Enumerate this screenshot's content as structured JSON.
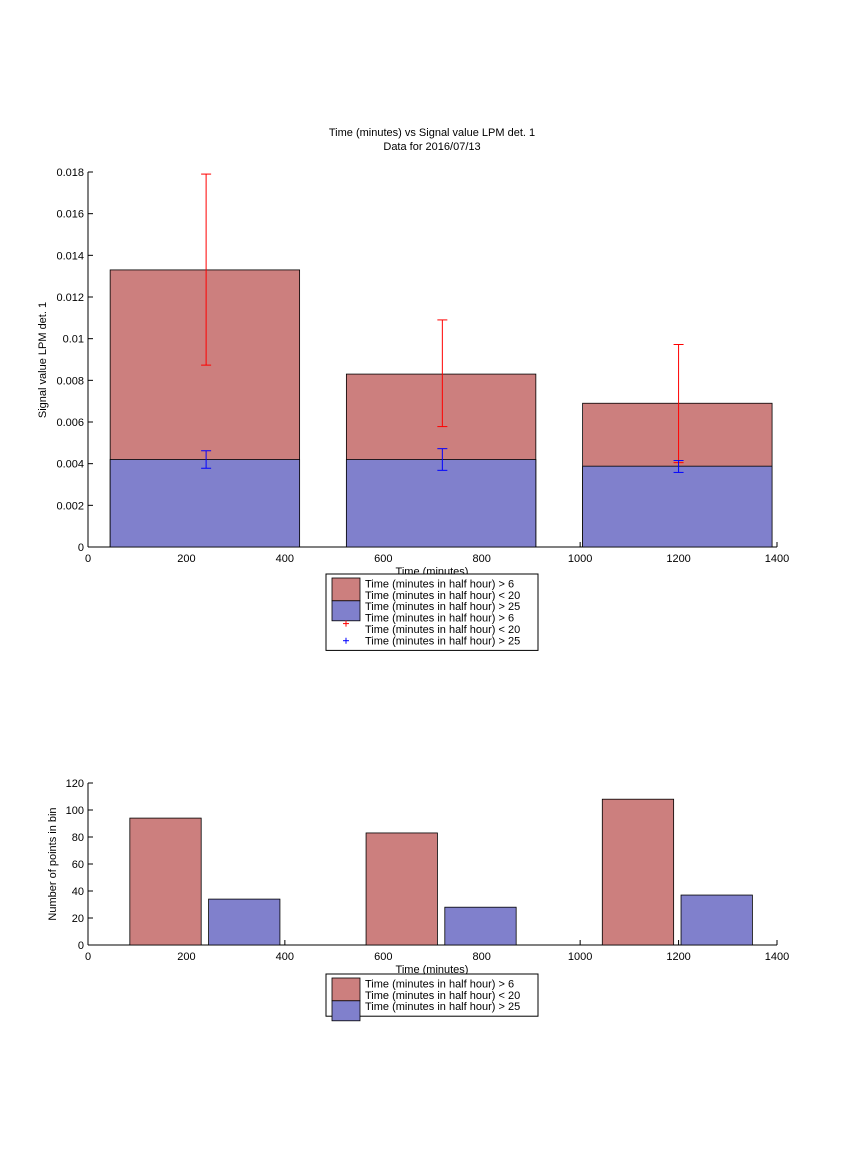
{
  "colors": {
    "red_fill": "#cc7f7e",
    "blue_fill": "#8080cc",
    "red_err": "#ff0000",
    "blue_err": "#0000ff"
  },
  "chart_data": [
    {
      "type": "bar",
      "title": "Time (minutes) vs Signal value LPM det. 1",
      "subtitle": "Data for 2016/07/13",
      "xlabel": "Time (minutes)",
      "ylabel": "Signal value LPM det. 1",
      "xlim": [
        0,
        1400
      ],
      "ylim": [
        0,
        0.018
      ],
      "xticks": [
        0,
        200,
        400,
        600,
        800,
        1000,
        1200,
        1400
      ],
      "yticks": [
        0,
        0.002,
        0.004,
        0.006,
        0.008,
        0.01,
        0.012,
        0.014,
        0.016,
        0.018
      ],
      "ytick_labels": [
        "0",
        "0.002",
        "0.004",
        "0.006",
        "0.008",
        "0.01",
        "0.012",
        "0.014",
        "0.016",
        "0.018"
      ],
      "bars": [
        {
          "x0": 45,
          "x1": 430,
          "center": 240,
          "red": 0.0133,
          "blue": 0.0042
        },
        {
          "x0": 525,
          "x1": 910,
          "center": 720,
          "red": 0.0083,
          "blue": 0.0042
        },
        {
          "x0": 1005,
          "x1": 1390,
          "center": 1200,
          "red": 0.0069,
          "blue": 0.00388
        }
      ],
      "errorbars": [
        {
          "series": "red",
          "x": 240,
          "low": 0.00873,
          "high": 0.0179
        },
        {
          "series": "red",
          "x": 720,
          "low": 0.00578,
          "high": 0.0109
        },
        {
          "series": "red",
          "x": 1200,
          "low": 0.00405,
          "high": 0.00972
        },
        {
          "series": "blue",
          "x": 240,
          "low": 0.00378,
          "high": 0.00462
        },
        {
          "series": "blue",
          "x": 720,
          "low": 0.00368,
          "high": 0.00472
        },
        {
          "series": "blue",
          "x": 1200,
          "low": 0.00358,
          "high": 0.00415
        }
      ],
      "legend": [
        {
          "kind": "red-patch",
          "lines": [
            "Time (minutes in half hour) > 6",
            "Time (minutes in half hour) < 20"
          ]
        },
        {
          "kind": "blue-patch",
          "lines": [
            "Time (minutes in half hour) > 25"
          ]
        },
        {
          "kind": "red-marker",
          "lines": [
            "Time (minutes in half hour) > 6",
            "Time (minutes in half hour) < 20"
          ]
        },
        {
          "kind": "blue-marker",
          "lines": [
            "Time (minutes in half hour) > 25"
          ]
        }
      ],
      "legend_placement": "below axes"
    },
    {
      "type": "bar",
      "xlabel": "Time (minutes)",
      "ylabel": "Number of points in bin",
      "xlim": [
        0,
        1400
      ],
      "ylim": [
        0,
        120
      ],
      "xticks": [
        0,
        200,
        400,
        600,
        800,
        1000,
        1200,
        1400
      ],
      "yticks": [
        0,
        20,
        40,
        60,
        80,
        100,
        120
      ],
      "bars": [
        {
          "series": "red",
          "x0": 85,
          "x1": 230,
          "value": 94
        },
        {
          "series": "blue",
          "x0": 245,
          "x1": 390,
          "value": 34
        },
        {
          "series": "red",
          "x0": 565,
          "x1": 710,
          "value": 83
        },
        {
          "series": "blue",
          "x0": 725,
          "x1": 870,
          "value": 28
        },
        {
          "series": "red",
          "x0": 1045,
          "x1": 1190,
          "value": 108
        },
        {
          "series": "blue",
          "x0": 1205,
          "x1": 1350,
          "value": 37
        }
      ],
      "legend": [
        {
          "kind": "red-patch",
          "lines": [
            "Time (minutes in half hour) > 6",
            "Time (minutes in half hour) < 20"
          ]
        },
        {
          "kind": "blue-patch",
          "lines": [
            "Time (minutes in half hour) > 25"
          ]
        }
      ],
      "legend_placement": "below axes"
    }
  ]
}
